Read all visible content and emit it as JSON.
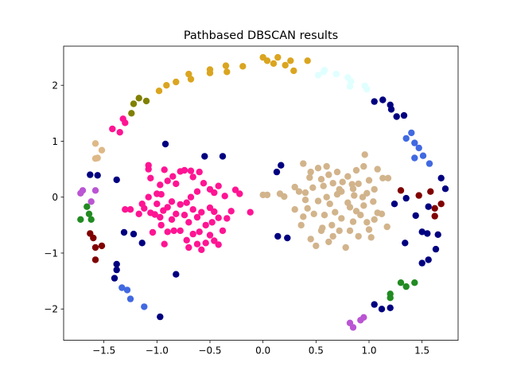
{
  "chart_data": {
    "type": "scatter",
    "title": "Pathbased DBSCAN results",
    "xlabel": "",
    "ylabel": "",
    "xlim": [
      -1.88,
      1.84
    ],
    "ylim": [
      -2.56,
      2.7
    ],
    "x_ticks": [
      -1.5,
      -1.0,
      -0.5,
      0.0,
      0.5,
      1.0,
      1.5
    ],
    "x_tick_labels": [
      "−1.5",
      "−1.0",
      "−0.5",
      "0.0",
      "0.5",
      "1.0",
      "1.5"
    ],
    "y_ticks": [
      -2,
      -1,
      0,
      1,
      2
    ],
    "y_tick_labels": [
      "−2",
      "−1",
      "0",
      "1",
      "2"
    ],
    "grid": false,
    "legend": false,
    "series": [
      {
        "color": "#DAA520",
        "points": [
          [
            -0.98,
            1.9
          ],
          [
            -0.91,
            2.0
          ],
          [
            -0.82,
            2.06
          ],
          [
            -0.7,
            2.2
          ],
          [
            -0.68,
            2.11
          ],
          [
            -0.5,
            2.22
          ],
          [
            -0.5,
            2.28
          ],
          [
            -0.35,
            2.35
          ],
          [
            -0.34,
            2.24
          ],
          [
            -0.19,
            2.34
          ],
          [
            0.0,
            2.5
          ],
          [
            0.04,
            2.44
          ],
          [
            0.1,
            2.39
          ],
          [
            0.14,
            2.5
          ],
          [
            0.21,
            2.36
          ],
          [
            0.26,
            2.44
          ],
          [
            0.29,
            2.26
          ],
          [
            0.42,
            2.44
          ]
        ]
      },
      {
        "color": "#E0FFFF",
        "points": [
          [
            0.52,
            2.18
          ],
          [
            0.57,
            2.24
          ],
          [
            0.58,
            2.27
          ],
          [
            0.69,
            2.2
          ],
          [
            0.8,
            2.14
          ],
          [
            0.83,
            2.07
          ],
          [
            0.82,
            1.98
          ],
          [
            0.96,
            1.99
          ],
          [
            0.98,
            1.93
          ]
        ]
      },
      {
        "color": "#808000",
        "points": [
          [
            -1.24,
            1.5
          ],
          [
            -1.22,
            1.67
          ],
          [
            -1.17,
            1.77
          ],
          [
            -1.1,
            1.72
          ]
        ]
      },
      {
        "color": "#FF1493",
        "points": [
          [
            -1.42,
            1.22
          ],
          [
            -1.35,
            1.16
          ],
          [
            -1.32,
            1.4
          ],
          [
            -1.3,
            1.33
          ],
          [
            -1.08,
            0.57
          ],
          [
            -1.08,
            0.5
          ],
          [
            -1.06,
            0.34
          ],
          [
            -1.0,
            0.06
          ],
          [
            -0.97,
            0.22
          ],
          [
            -0.93,
            0.49
          ],
          [
            -0.9,
            0.29
          ],
          [
            -0.85,
            0.37
          ],
          [
            -0.82,
            0.24
          ],
          [
            -0.78,
            0.46
          ],
          [
            -0.74,
            0.48
          ],
          [
            -0.68,
            0.47
          ],
          [
            -0.66,
            0.36
          ],
          [
            -0.6,
            0.45
          ],
          [
            -0.56,
            0.25
          ],
          [
            -0.5,
            0.14
          ],
          [
            -0.46,
            0.08
          ],
          [
            -0.42,
            0.2
          ],
          [
            -0.36,
            0.02
          ],
          [
            -0.26,
            0.13
          ],
          [
            -0.22,
            0.06
          ],
          [
            -1.3,
            -0.22
          ],
          [
            -1.25,
            -0.22
          ],
          [
            -1.17,
            -0.3
          ],
          [
            -1.12,
            -0.2
          ],
          [
            -1.06,
            -0.28
          ],
          [
            -1.02,
            -0.31
          ],
          [
            -1.0,
            -0.12
          ],
          [
            -0.97,
            -0.36
          ],
          [
            -0.94,
            -0.24
          ],
          [
            -0.9,
            -0.18
          ],
          [
            -0.86,
            -0.4
          ],
          [
            -0.82,
            -0.3
          ],
          [
            -0.78,
            -0.13
          ],
          [
            -0.74,
            -0.32
          ],
          [
            -0.7,
            -0.45
          ],
          [
            -0.66,
            -0.22
          ],
          [
            -0.62,
            -0.36
          ],
          [
            -0.58,
            -0.27
          ],
          [
            -0.54,
            -0.5
          ],
          [
            -0.5,
            -0.19
          ],
          [
            -0.46,
            -0.26
          ],
          [
            -0.42,
            -0.37
          ],
          [
            -0.38,
            -0.6
          ],
          [
            -0.34,
            -0.38
          ],
          [
            -0.3,
            -0.25
          ],
          [
            -0.12,
            -0.27
          ],
          [
            -1.04,
            -0.63
          ],
          [
            -0.96,
            -0.5
          ],
          [
            -0.93,
            -0.84
          ],
          [
            -0.84,
            -0.6
          ],
          [
            -0.78,
            -0.6
          ],
          [
            -0.72,
            -0.77
          ],
          [
            -0.7,
            -0.9
          ],
          [
            -0.66,
            -0.66
          ],
          [
            -0.62,
            -0.84
          ],
          [
            -0.58,
            -0.94
          ],
          [
            -0.54,
            -0.82
          ],
          [
            -0.5,
            -0.68
          ],
          [
            -0.46,
            -0.78
          ],
          [
            -0.42,
            -0.85
          ],
          [
            -0.6,
            -0.62
          ],
          [
            -0.86,
            -0.08
          ],
          [
            -1.14,
            -0.12
          ],
          [
            -1.08,
            0.0
          ],
          [
            -0.96,
            0.05
          ],
          [
            -0.62,
            0.1
          ],
          [
            -0.68,
            0.0
          ],
          [
            -0.72,
            -0.1
          ],
          [
            -0.48,
            -0.45
          ],
          [
            -0.9,
            -0.62
          ]
        ]
      },
      {
        "color": "#D2B48C",
        "points": [
          [
            0.0,
            0.04
          ],
          [
            0.04,
            0.04
          ],
          [
            0.16,
            0.06
          ],
          [
            0.2,
            0.01
          ],
          [
            0.3,
            0.18
          ],
          [
            0.34,
            0.1
          ],
          [
            0.38,
            0.6
          ],
          [
            0.4,
            0.08
          ],
          [
            0.44,
            0.35
          ],
          [
            0.47,
            0.17
          ],
          [
            0.52,
            0.52
          ],
          [
            0.55,
            0.32
          ],
          [
            0.57,
            0.2
          ],
          [
            0.6,
            0.55
          ],
          [
            0.62,
            0.4
          ],
          [
            0.66,
            0.25
          ],
          [
            0.7,
            0.45
          ],
          [
            0.72,
            0.14
          ],
          [
            0.75,
            0.27
          ],
          [
            0.8,
            0.37
          ],
          [
            0.85,
            0.15
          ],
          [
            0.88,
            0.48
          ],
          [
            0.9,
            0.24
          ],
          [
            0.95,
            0.55
          ],
          [
            0.96,
            0.76
          ],
          [
            1.0,
            0.3
          ],
          [
            1.05,
            0.14
          ],
          [
            1.08,
            0.5
          ],
          [
            1.13,
            0.34
          ],
          [
            1.18,
            0.34
          ],
          [
            0.3,
            -0.22
          ],
          [
            0.36,
            -0.5
          ],
          [
            0.38,
            -0.35
          ],
          [
            0.42,
            -0.2
          ],
          [
            0.45,
            -0.75
          ],
          [
            0.48,
            -0.3
          ],
          [
            0.5,
            -0.87
          ],
          [
            0.55,
            -0.6
          ],
          [
            0.58,
            -0.32
          ],
          [
            0.62,
            -0.8
          ],
          [
            0.65,
            -0.5
          ],
          [
            0.68,
            -0.27
          ],
          [
            0.72,
            -0.6
          ],
          [
            0.74,
            -0.38
          ],
          [
            0.78,
            -0.9
          ],
          [
            0.82,
            -0.6
          ],
          [
            0.85,
            -0.44
          ],
          [
            0.88,
            -0.25
          ],
          [
            0.9,
            -0.7
          ],
          [
            0.95,
            -0.15
          ],
          [
            0.98,
            -0.45
          ],
          [
            1.0,
            -0.58
          ],
          [
            1.05,
            -0.4
          ],
          [
            1.08,
            -0.28
          ],
          [
            1.12,
            -0.3
          ],
          [
            1.17,
            -0.53
          ],
          [
            1.04,
            -0.08
          ],
          [
            0.94,
            0.0
          ],
          [
            0.8,
            -0.1
          ],
          [
            0.7,
            0.05
          ],
          [
            0.6,
            0.0
          ],
          [
            0.52,
            -0.07
          ],
          [
            0.56,
            -0.55
          ],
          [
            0.66,
            -0.7
          ],
          [
            0.82,
            -0.18
          ],
          [
            0.92,
            -0.32
          ],
          [
            0.63,
            -0.12
          ],
          [
            0.74,
            0.1
          ],
          [
            0.86,
            0.03
          ],
          [
            0.98,
            0.07
          ],
          [
            1.02,
            -0.72
          ],
          [
            0.4,
            -0.05
          ],
          [
            0.45,
            0.45
          ],
          [
            0.84,
            0.23
          ]
        ]
      },
      {
        "color": "#000080",
        "points": [
          [
            -0.92,
            0.95
          ],
          [
            -0.55,
            0.73
          ],
          [
            -0.38,
            0.73
          ],
          [
            -1.56,
            0.39
          ],
          [
            -1.63,
            0.4
          ],
          [
            -1.38,
            0.31
          ],
          [
            -1.31,
            -0.63
          ],
          [
            -1.22,
            -0.66
          ],
          [
            -1.14,
            -0.82
          ],
          [
            -0.82,
            -1.38
          ],
          [
            -1.38,
            -1.2
          ],
          [
            -1.4,
            -1.45
          ],
          [
            -1.38,
            -1.3
          ],
          [
            -0.97,
            -2.14
          ],
          [
            0.17,
            0.57
          ],
          [
            0.13,
            0.45
          ],
          [
            0.14,
            -0.7
          ],
          [
            0.23,
            -0.73
          ],
          [
            1.05,
            1.71
          ],
          [
            1.13,
            1.74
          ],
          [
            1.2,
            1.65
          ],
          [
            1.21,
            1.57
          ],
          [
            1.26,
            1.44
          ],
          [
            1.33,
            1.46
          ],
          [
            1.24,
            -0.12
          ],
          [
            1.35,
            -0.02
          ],
          [
            1.44,
            -0.33
          ],
          [
            1.5,
            -0.62
          ],
          [
            1.55,
            -0.65
          ],
          [
            1.56,
            -0.17
          ],
          [
            1.65,
            -0.67
          ],
          [
            1.68,
            0.34
          ],
          [
            1.72,
            0.15
          ],
          [
            1.34,
            -0.82
          ],
          [
            1.5,
            -1.18
          ],
          [
            1.56,
            -1.12
          ],
          [
            1.63,
            -0.93
          ],
          [
            1.05,
            -1.92
          ],
          [
            1.12,
            -2.0
          ],
          [
            1.2,
            -1.98
          ]
        ]
      },
      {
        "color": "#4169E1",
        "points": [
          [
            1.35,
            1.05
          ],
          [
            1.4,
            1.15
          ],
          [
            1.43,
            0.97
          ],
          [
            1.47,
            0.88
          ],
          [
            1.43,
            0.7
          ],
          [
            1.51,
            0.74
          ],
          [
            1.57,
            0.6
          ],
          [
            -1.33,
            -1.62
          ],
          [
            -1.28,
            -1.66
          ],
          [
            -1.25,
            -1.82
          ],
          [
            -1.12,
            -1.96
          ]
        ]
      },
      {
        "color": "#DEB887",
        "points": [
          [
            -1.58,
            0.96
          ],
          [
            -1.52,
            0.84
          ],
          [
            -1.58,
            0.69
          ],
          [
            -1.56,
            0.7
          ]
        ]
      },
      {
        "color": "#800000",
        "points": [
          [
            1.3,
            0.12
          ],
          [
            1.47,
            0.03
          ],
          [
            1.58,
            0.1
          ],
          [
            1.62,
            -0.2
          ],
          [
            1.68,
            -0.12
          ],
          [
            1.62,
            -0.34
          ],
          [
            -1.63,
            -0.65
          ],
          [
            -1.6,
            -0.73
          ],
          [
            -1.58,
            -0.9
          ],
          [
            -1.58,
            -1.12
          ],
          [
            -1.52,
            -0.87
          ]
        ]
      },
      {
        "color": "#BA55D3",
        "points": [
          [
            -1.72,
            0.07
          ],
          [
            -1.7,
            0.12
          ],
          [
            -1.58,
            0.12
          ],
          [
            -1.62,
            -0.08
          ],
          [
            0.82,
            -2.25
          ],
          [
            0.85,
            -2.33
          ],
          [
            0.92,
            -2.2
          ],
          [
            0.95,
            -2.15
          ]
        ]
      },
      {
        "color": "#228B22",
        "points": [
          [
            -1.72,
            -0.4
          ],
          [
            -1.66,
            -0.17
          ],
          [
            -1.64,
            -0.3
          ],
          [
            -1.62,
            -0.4
          ],
          [
            1.3,
            -1.53
          ],
          [
            1.35,
            -1.6
          ],
          [
            1.43,
            -1.53
          ],
          [
            1.2,
            -1.73
          ],
          [
            1.2,
            -1.8
          ]
        ]
      }
    ]
  }
}
